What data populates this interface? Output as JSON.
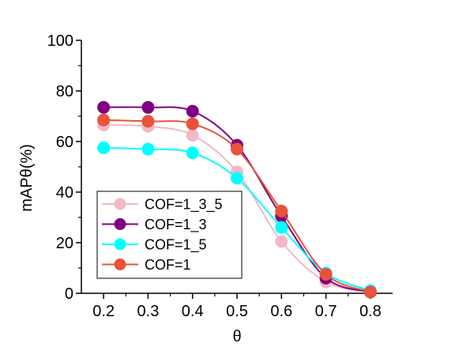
{
  "chart_data": {
    "type": "line",
    "xlabel": "θ",
    "ylabel": "mAPθ(%)",
    "x": [
      0.2,
      0.3,
      0.4,
      0.5,
      0.6,
      0.7,
      0.8
    ],
    "x_tick_labels": [
      "0.2",
      "0.3",
      "0.4",
      "0.5",
      "0.6",
      "0.7",
      "0.8"
    ],
    "xlim": [
      0.15,
      0.85
    ],
    "ylim": [
      0,
      100
    ],
    "y_ticks": [
      0,
      20,
      40,
      60,
      80,
      100
    ],
    "y_tick_labels": [
      "0",
      "20",
      "40",
      "60",
      "80",
      "100"
    ],
    "grid": false,
    "legend_position": "lower-left",
    "series": [
      {
        "name": "COF=1_3_5",
        "color": "#f2b8c6",
        "values": [
          66.5,
          66,
          62.5,
          48,
          20.5,
          4.5,
          0.5
        ]
      },
      {
        "name": "COF=1_3",
        "color": "#800080",
        "values": [
          73.5,
          73.5,
          72,
          58.5,
          30.5,
          6,
          0.5
        ]
      },
      {
        "name": "COF=1_5",
        "color": "#00ffff",
        "values": [
          57.5,
          57,
          55.5,
          45.5,
          26,
          8,
          1
        ]
      },
      {
        "name": "COF=1",
        "color": "#e8533a",
        "values": [
          68.5,
          68,
          67,
          57,
          32.5,
          7.5,
          0.5
        ]
      }
    ]
  }
}
